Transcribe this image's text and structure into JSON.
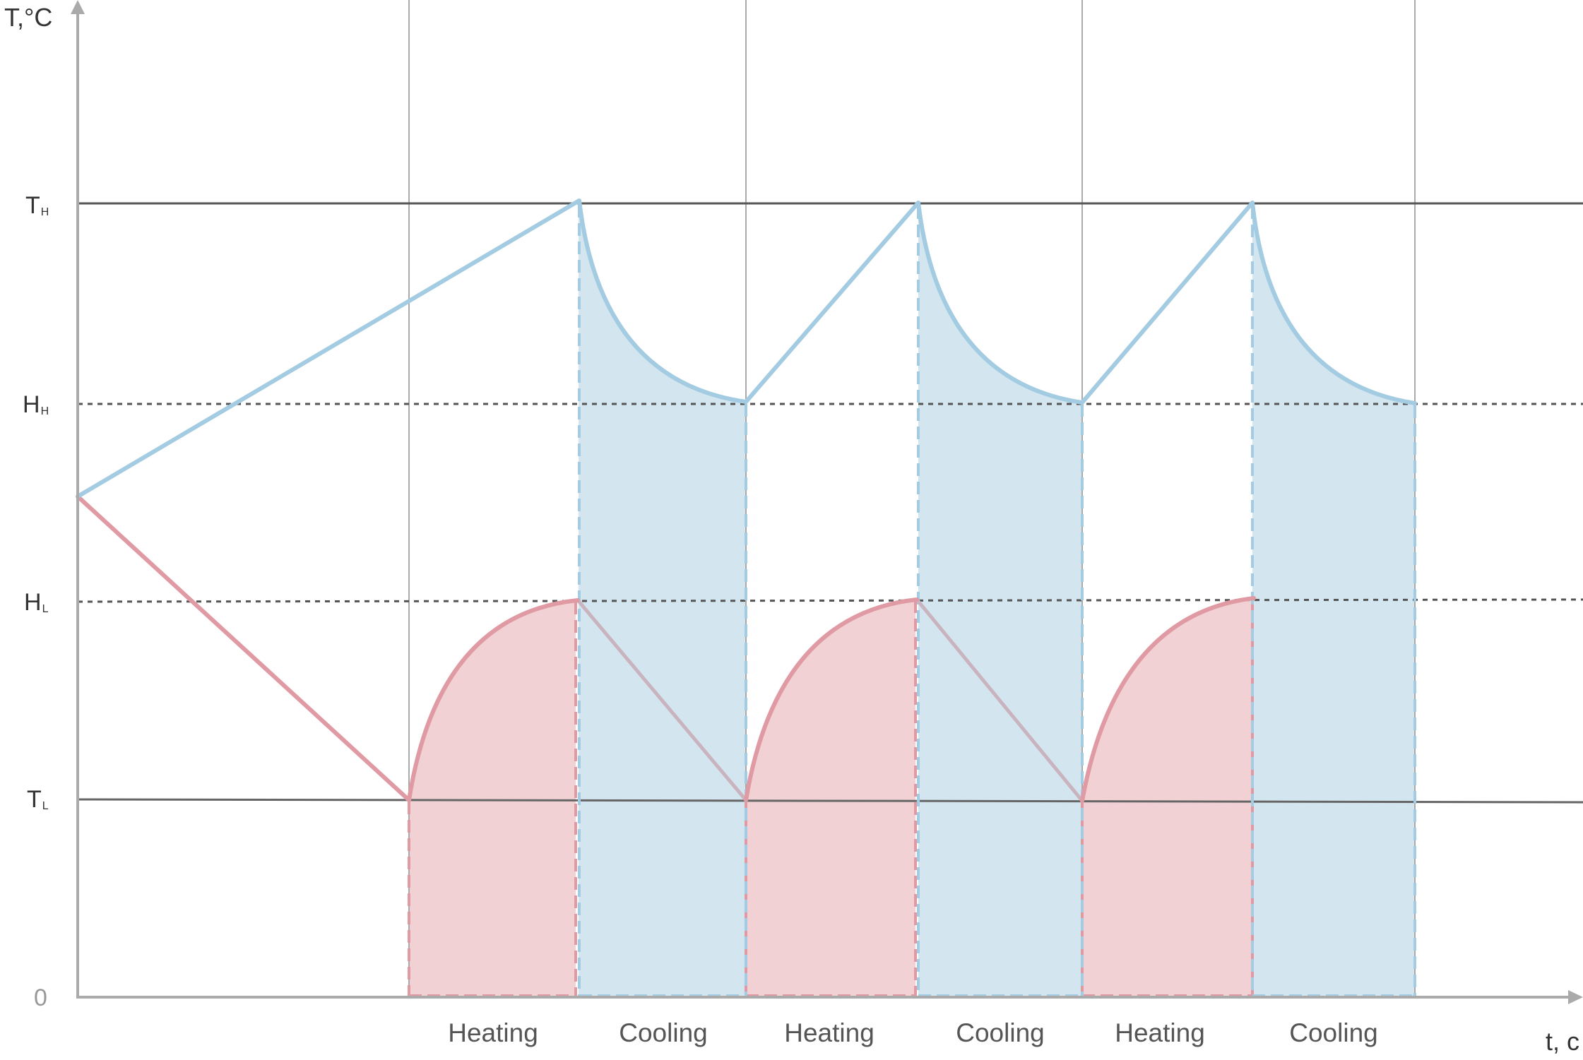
{
  "axis": {
    "y_label": "T,°C",
    "x_label": "t, c",
    "zero_label": "0"
  },
  "levels": [
    {
      "key": "TH",
      "main": "T",
      "sub": "H",
      "style": "solid"
    },
    {
      "key": "HH",
      "main": "H",
      "sub": "H",
      "style": "dotted"
    },
    {
      "key": "HL",
      "main": "H",
      "sub": "L",
      "style": "dotted"
    },
    {
      "key": "TL",
      "main": "T",
      "sub": "L",
      "style": "solid"
    }
  ],
  "phases": [
    "Heating",
    "Cooling",
    "Heating",
    "Cooling",
    "Heating",
    "Cooling"
  ],
  "colors": {
    "hot_line": "#a3cbe1",
    "hot_fill": "#d3e6f0",
    "cold_line": "#e09aa3",
    "cold_fill": "#f1d1d4",
    "descend_line": "#c8b3bf",
    "grid": "#aaaaaa",
    "level_line": "#555555",
    "axis": "#aaaaaa"
  }
}
